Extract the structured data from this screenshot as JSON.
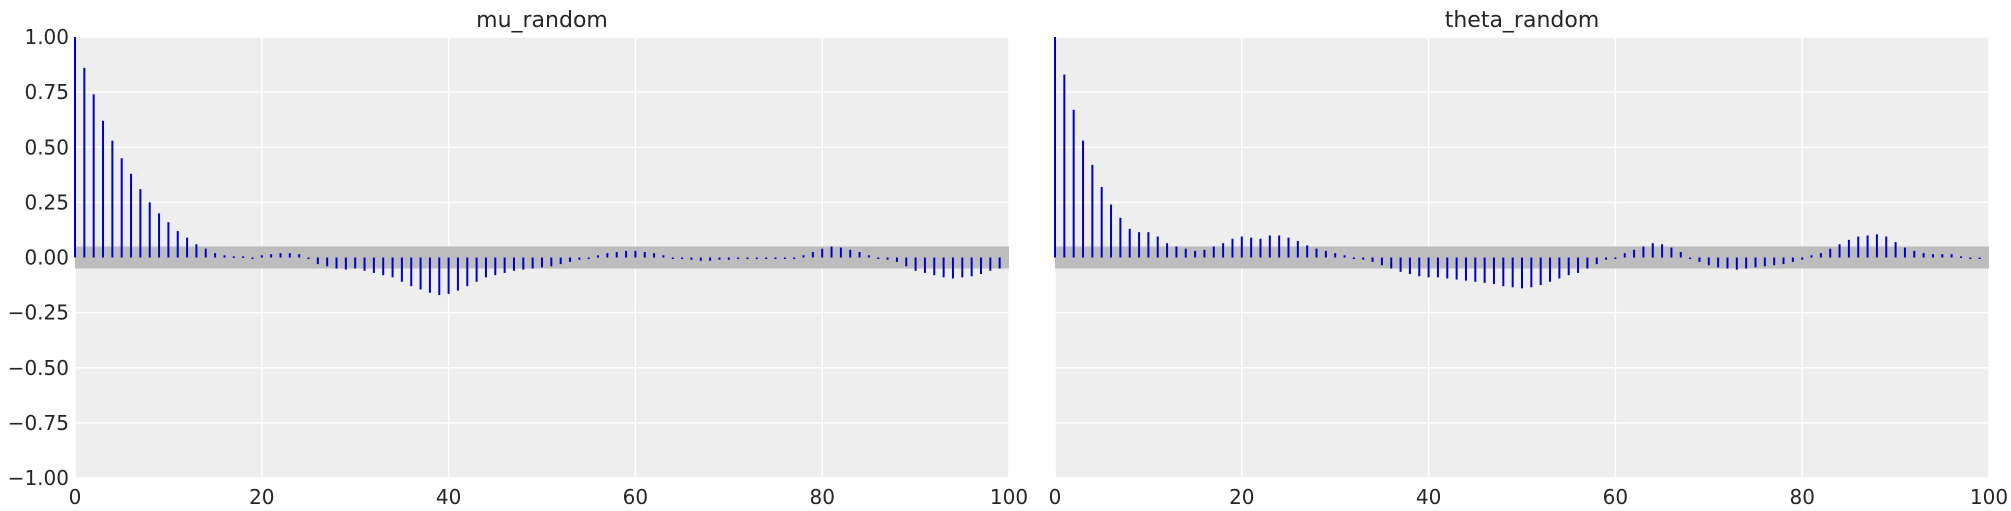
{
  "chart_data": [
    {
      "type": "bar",
      "title": "mu_random",
      "xlim": [
        0,
        100
      ],
      "ylim": [
        -1.0,
        1.0
      ],
      "xticks": [
        "0",
        "20",
        "40",
        "60",
        "80",
        "100"
      ],
      "yticks": [
        "1.00",
        "0.75",
        "0.50",
        "0.25",
        "0.00",
        "−0.25",
        "−0.50",
        "−0.75",
        "−1.00"
      ],
      "grid": true,
      "confidence_band": [
        -0.05,
        0.05
      ],
      "lags": [
        0,
        1,
        2,
        3,
        4,
        5,
        6,
        7,
        8,
        9,
        10,
        11,
        12,
        13,
        14,
        15,
        16,
        17,
        18,
        19,
        20,
        21,
        22,
        23,
        24,
        25,
        26,
        27,
        28,
        29,
        30,
        31,
        32,
        33,
        34,
        35,
        36,
        37,
        38,
        39,
        40,
        41,
        42,
        43,
        44,
        45,
        46,
        47,
        48,
        49,
        50,
        51,
        52,
        53,
        54,
        55,
        56,
        57,
        58,
        59,
        60,
        61,
        62,
        63,
        64,
        65,
        66,
        67,
        68,
        69,
        70,
        71,
        72,
        73,
        74,
        75,
        76,
        77,
        78,
        79,
        80,
        81,
        82,
        83,
        84,
        85,
        86,
        87,
        88,
        89,
        90,
        91,
        92,
        93,
        94,
        95,
        96,
        97,
        98,
        99
      ],
      "values": [
        1.0,
        0.86,
        0.74,
        0.62,
        0.53,
        0.45,
        0.38,
        0.31,
        0.25,
        0.2,
        0.16,
        0.12,
        0.09,
        0.06,
        0.04,
        0.02,
        0.01,
        0.005,
        0.005,
        0.0,
        0.01,
        0.015,
        0.02,
        0.02,
        0.015,
        0.0,
        -0.03,
        -0.04,
        -0.05,
        -0.055,
        -0.05,
        -0.06,
        -0.07,
        -0.08,
        -0.09,
        -0.11,
        -0.13,
        -0.145,
        -0.16,
        -0.17,
        -0.165,
        -0.15,
        -0.13,
        -0.11,
        -0.09,
        -0.08,
        -0.07,
        -0.06,
        -0.055,
        -0.05,
        -0.045,
        -0.04,
        -0.03,
        -0.02,
        -0.01,
        0.0,
        0.01,
        0.02,
        0.025,
        0.03,
        0.03,
        0.025,
        0.02,
        0.01,
        0.0,
        -0.005,
        -0.01,
        -0.015,
        -0.015,
        -0.01,
        -0.01,
        -0.005,
        -0.005,
        0.0,
        0.0,
        0.0,
        0.0,
        0.0,
        0.01,
        0.025,
        0.04,
        0.05,
        0.045,
        0.035,
        0.025,
        0.01,
        0.0,
        -0.01,
        -0.02,
        -0.04,
        -0.06,
        -0.07,
        -0.08,
        -0.09,
        -0.095,
        -0.09,
        -0.085,
        -0.075,
        -0.06,
        -0.05
      ],
      "colors": {
        "stem": "#0000cc",
        "band": "#bdbdbd",
        "background": "#eeeeee",
        "grid": "#ffffff"
      }
    },
    {
      "type": "bar",
      "title": "theta_random",
      "xlim": [
        0,
        100
      ],
      "ylim": [
        -1.0,
        1.0
      ],
      "xticks": [
        "0",
        "20",
        "40",
        "60",
        "80",
        "100"
      ],
      "yticks": [
        "1.00",
        "0.75",
        "0.50",
        "0.25",
        "0.00",
        "−0.25",
        "−0.50",
        "−0.75",
        "−1.00"
      ],
      "grid": true,
      "confidence_band": [
        -0.05,
        0.05
      ],
      "lags": [
        0,
        1,
        2,
        3,
        4,
        5,
        6,
        7,
        8,
        9,
        10,
        11,
        12,
        13,
        14,
        15,
        16,
        17,
        18,
        19,
        20,
        21,
        22,
        23,
        24,
        25,
        26,
        27,
        28,
        29,
        30,
        31,
        32,
        33,
        34,
        35,
        36,
        37,
        38,
        39,
        40,
        41,
        42,
        43,
        44,
        45,
        46,
        47,
        48,
        49,
        50,
        51,
        52,
        53,
        54,
        55,
        56,
        57,
        58,
        59,
        60,
        61,
        62,
        63,
        64,
        65,
        66,
        67,
        68,
        69,
        70,
        71,
        72,
        73,
        74,
        75,
        76,
        77,
        78,
        79,
        80,
        81,
        82,
        83,
        84,
        85,
        86,
        87,
        88,
        89,
        90,
        91,
        92,
        93,
        94,
        95,
        96,
        97,
        98,
        99
      ],
      "values": [
        1.0,
        0.83,
        0.67,
        0.53,
        0.42,
        0.32,
        0.24,
        0.18,
        0.13,
        0.115,
        0.115,
        0.095,
        0.065,
        0.05,
        0.04,
        0.03,
        0.035,
        0.05,
        0.065,
        0.085,
        0.095,
        0.09,
        0.085,
        0.1,
        0.1,
        0.09,
        0.075,
        0.055,
        0.04,
        0.03,
        0.02,
        0.01,
        0.0,
        -0.01,
        -0.02,
        -0.035,
        -0.05,
        -0.065,
        -0.075,
        -0.085,
        -0.09,
        -0.09,
        -0.095,
        -0.1,
        -0.105,
        -0.11,
        -0.115,
        -0.12,
        -0.13,
        -0.135,
        -0.14,
        -0.135,
        -0.125,
        -0.11,
        -0.095,
        -0.08,
        -0.07,
        -0.05,
        -0.03,
        -0.01,
        0.0,
        0.02,
        0.035,
        0.05,
        0.065,
        0.06,
        0.045,
        0.025,
        0.0,
        -0.02,
        -0.035,
        -0.045,
        -0.05,
        -0.055,
        -0.05,
        -0.045,
        -0.04,
        -0.035,
        -0.03,
        -0.02,
        -0.01,
        0.01,
        0.02,
        0.04,
        0.06,
        0.08,
        0.095,
        0.1,
        0.105,
        0.095,
        0.07,
        0.045,
        0.03,
        0.02,
        0.015,
        0.015,
        0.015,
        0.005,
        0.0,
        0.0
      ],
      "colors": {
        "stem": "#0000cc",
        "band": "#bdbdbd",
        "background": "#eeeeee",
        "grid": "#ffffff"
      }
    }
  ]
}
